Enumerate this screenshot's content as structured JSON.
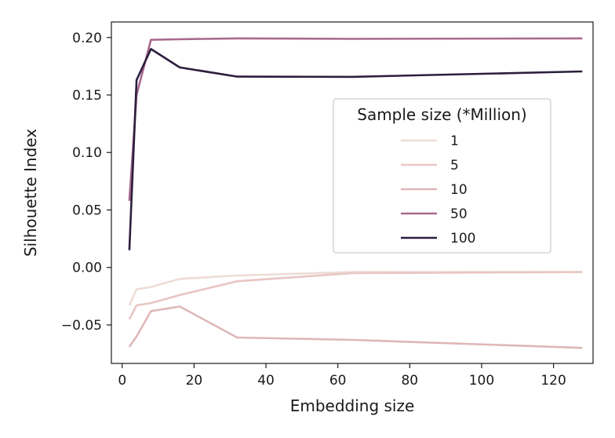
{
  "chart_data": {
    "type": "line",
    "xlabel": "Embedding size",
    "ylabel": "Silhouette Index",
    "xlim": [
      -3,
      131
    ],
    "ylim": [
      -0.0835,
      0.2135
    ],
    "xticks": [
      0,
      20,
      40,
      60,
      80,
      100,
      120
    ],
    "xtick_labels": [
      "0",
      "20",
      "40",
      "60",
      "80",
      "100",
      "120"
    ],
    "yticks": [
      -0.05,
      0.0,
      0.05,
      0.1,
      0.15,
      0.2
    ],
    "ytick_labels": [
      "−0.05",
      "0.00",
      "0.05",
      "0.10",
      "0.15",
      "0.20"
    ],
    "grid": false,
    "legend": {
      "title": "Sample size (*Million)",
      "position": "center-right"
    },
    "series": [
      {
        "name": "1",
        "color": "#eedcd6",
        "x": [
          2,
          4,
          8,
          16,
          32,
          64,
          128
        ],
        "y": [
          -0.033,
          -0.019,
          -0.017,
          -0.01,
          -0.007,
          -0.004,
          -0.004
        ]
      },
      {
        "name": "5",
        "color": "#e8c6c3",
        "x": [
          2,
          4,
          8,
          16,
          32,
          64,
          128
        ],
        "y": [
          -0.045,
          -0.033,
          -0.031,
          -0.024,
          -0.012,
          -0.005,
          -0.004
        ]
      },
      {
        "name": "10",
        "color": "#dfb7b8",
        "x": [
          2,
          4,
          8,
          16,
          32,
          64,
          128
        ],
        "y": [
          -0.069,
          -0.06,
          -0.038,
          -0.034,
          -0.061,
          -0.063,
          -0.07
        ]
      },
      {
        "name": "50",
        "color": "#a8698f",
        "x": [
          2,
          4,
          8,
          16,
          32,
          64,
          128
        ],
        "y": [
          0.058,
          0.15,
          0.198,
          0.1985,
          0.1992,
          0.1988,
          0.1992
        ]
      },
      {
        "name": "100",
        "color": "#2c1e3d",
        "x": [
          2,
          4,
          8,
          16,
          32,
          64,
          128
        ],
        "y": [
          0.015,
          0.163,
          0.19,
          0.174,
          0.166,
          0.1658,
          0.1705
        ]
      }
    ]
  }
}
